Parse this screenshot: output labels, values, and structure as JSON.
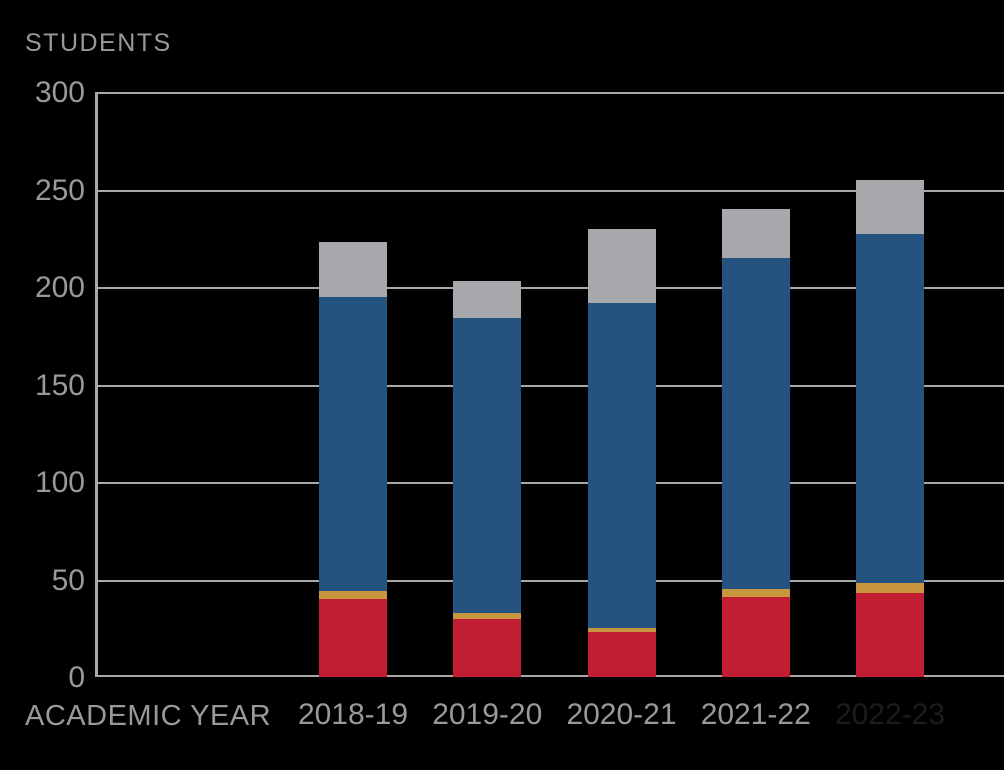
{
  "page": {
    "background": "#000000"
  },
  "chart_data": {
    "type": "bar",
    "stacked": true,
    "title": "STUDENTS",
    "xlabel": "ACADEMIC YEAR",
    "ylabel": "STUDENTS",
    "categories": [
      "2018-19",
      "2019-20",
      "2020-21",
      "2021-22",
      "2022-23"
    ],
    "series": [
      {
        "name": "red-segment",
        "color": "#C21E33",
        "values": [
          40,
          30,
          23,
          41,
          43
        ]
      },
      {
        "name": "gold-segment",
        "color": "#C8963E",
        "values": [
          4,
          3,
          2,
          4,
          5
        ]
      },
      {
        "name": "blue-segment",
        "color": "#255380",
        "values": [
          151,
          151,
          167,
          170,
          179
        ]
      },
      {
        "name": "gray-segment",
        "color": "#A6A8AB",
        "values": [
          28,
          19,
          38,
          25,
          28
        ]
      }
    ],
    "totals": [
      223,
      203,
      230,
      240,
      255
    ],
    "y_ticks": [
      0,
      50,
      100,
      150,
      200,
      250,
      300
    ],
    "ylim": [
      0,
      300
    ],
    "grid": true,
    "legend": "none",
    "axis_color": "#A8A8A8",
    "tick_label_color": "#98999C",
    "x_label_colors": [
      "#98999C",
      "#98999C",
      "#98999C",
      "#98999C",
      "#1C1C1C"
    ]
  }
}
